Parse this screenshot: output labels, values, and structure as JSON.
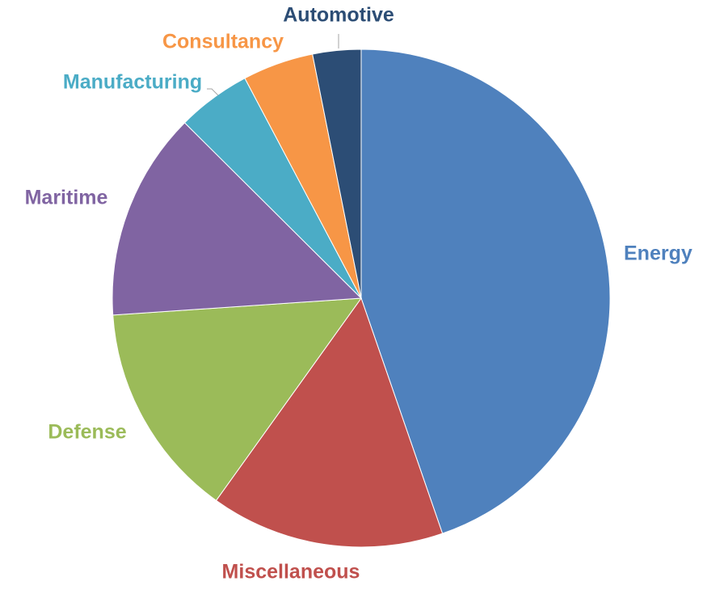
{
  "chart_data": {
    "type": "pie",
    "title": "",
    "start": "top",
    "direction": "clockwise",
    "slices": [
      {
        "label": "Energy",
        "value": 45.6,
        "color": "#4F81BD"
      },
      {
        "label": "Miscellaneous",
        "value": 15.5,
        "color": "#C0504D"
      },
      {
        "label": "Defense",
        "value": 14.3,
        "color": "#9BBB59"
      },
      {
        "label": "Maritime",
        "value": 13.8,
        "color": "#8064A2"
      },
      {
        "label": "Manufacturing",
        "value": 4.9,
        "color": "#4BACC6"
      },
      {
        "label": "Consultancy",
        "value": 4.7,
        "color": "#F79646"
      },
      {
        "label": "Automotive",
        "value": 3.2,
        "color": "#2C4D75"
      }
    ]
  }
}
